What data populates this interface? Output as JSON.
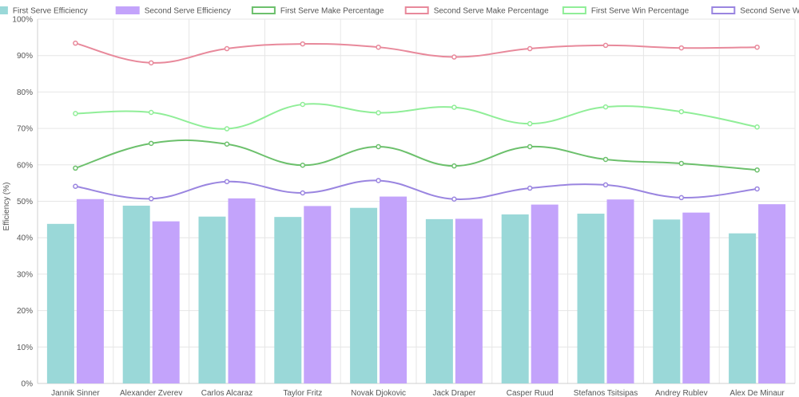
{
  "chart_data": {
    "type": "bar",
    "categories": [
      "Jannik Sinner",
      "Alexander Zverev",
      "Carlos Alcaraz",
      "Taylor Fritz",
      "Novak Djokovic",
      "Jack Draper",
      "Casper Ruud",
      "Stefanos Tsitsipas",
      "Andrey Rublev",
      "Alex De Minaur"
    ],
    "ylabel": "Efficiency (%)",
    "xlabel": "",
    "ylim": [
      0,
      100
    ],
    "yticks": [
      0,
      10,
      20,
      30,
      40,
      50,
      60,
      70,
      80,
      90,
      100
    ],
    "ytick_suffix": "%",
    "grid": true,
    "legend_position": "top",
    "bar_series": [
      {
        "name": "First Serve Efficiency",
        "color": "#9ad8d8",
        "values": [
          43.8,
          48.8,
          45.8,
          45.7,
          48.2,
          45.1,
          46.4,
          46.6,
          45.0,
          41.2
        ]
      },
      {
        "name": "Second Serve Efficiency",
        "color": "#c3a3fb",
        "values": [
          50.6,
          44.5,
          50.8,
          48.7,
          51.3,
          45.2,
          49.1,
          50.5,
          46.9,
          49.2
        ]
      }
    ],
    "line_series": [
      {
        "name": "First Serve Make Percentage",
        "color": "#6cc06c",
        "values": [
          59.1,
          65.9,
          65.7,
          59.9,
          65.0,
          59.7,
          65.0,
          61.5,
          60.4,
          58.6
        ]
      },
      {
        "name": "Second Serve Make Percentage",
        "color": "#e8899b",
        "values": [
          93.4,
          88.0,
          91.9,
          93.2,
          92.3,
          89.6,
          91.9,
          92.8,
          92.1,
          92.3
        ]
      },
      {
        "name": "First Serve Win Percentage",
        "color": "#90ee98",
        "values": [
          74.1,
          74.4,
          69.9,
          76.6,
          74.3,
          75.8,
          71.3,
          75.9,
          74.6,
          70.4
        ]
      },
      {
        "name": "Second Serve Win Percentage",
        "color": "#9a85e0",
        "values": [
          54.1,
          50.7,
          55.4,
          52.3,
          55.7,
          50.6,
          53.6,
          54.5,
          51.0,
          53.4
        ]
      }
    ]
  }
}
